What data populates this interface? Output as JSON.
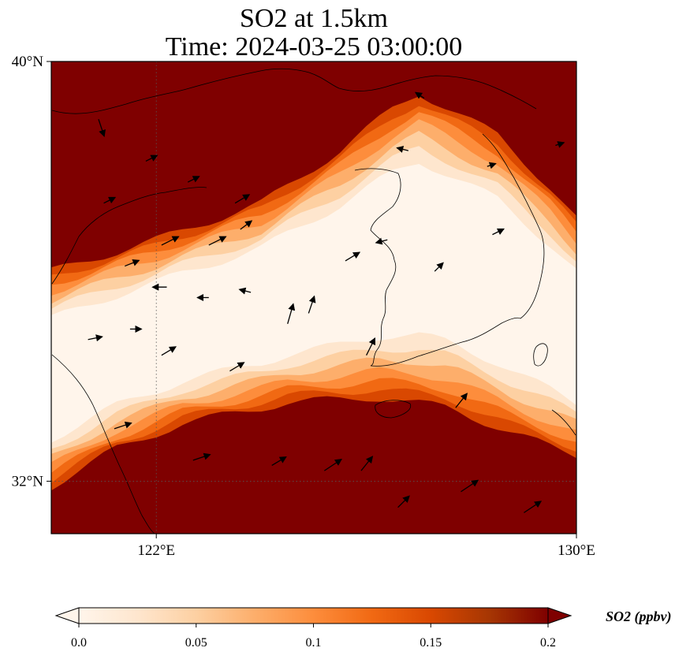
{
  "title": {
    "line1": "SO2 at 1.5km",
    "line2": "Time: 2024-03-25 03:00:00"
  },
  "colors": {
    "colormap": [
      "#fff5eb",
      "#fee6ce",
      "#fdd0a2",
      "#fdae6b",
      "#fd8d3c",
      "#f16913",
      "#d94801",
      "#a63603",
      "#7f0000"
    ],
    "high": "#7f0000",
    "coast": "#000000",
    "arrow": "#000000"
  },
  "chart_data": {
    "type": "heatmap",
    "variable": "SO2",
    "x_range": [
      120,
      130
    ],
    "y_range": [
      31,
      40
    ],
    "xticks": [
      {
        "value": 122,
        "label": "122°E"
      },
      {
        "value": 130,
        "label": "130°E"
      }
    ],
    "yticks": [
      {
        "value": 40,
        "label": "40°N"
      },
      {
        "value": 32,
        "label": "32°N"
      }
    ],
    "gridlines": "dotted",
    "wind_vectors": true,
    "coastlines": true,
    "colorbar": {
      "label": "SO2 (ppbv)",
      "min": 0.0,
      "max": 0.2,
      "ticks": [
        {
          "value": 0.0,
          "label": "0.0"
        },
        {
          "value": 0.05,
          "label": "0.05"
        },
        {
          "value": 0.1,
          "label": "0.1"
        },
        {
          "value": 0.15,
          "label": "0.15"
        },
        {
          "value": 0.2,
          "label": "0.2"
        }
      ],
      "extend": "both"
    },
    "low_band": {
      "note": "band of low SO2 values (data units: lon, lat)",
      "upper_edge": [
        [
          120.0,
          36.0
        ],
        [
          122.0,
          36.6
        ],
        [
          124.0,
          37.3
        ],
        [
          125.5,
          38.3
        ],
        [
          126.5,
          39.1
        ],
        [
          127.0,
          39.4
        ],
        [
          128.5,
          38.6
        ],
        [
          129.5,
          37.6
        ],
        [
          130.0,
          37.0
        ]
      ],
      "lower_edge": [
        [
          120.0,
          31.9
        ],
        [
          121.2,
          32.6
        ],
        [
          122.5,
          33.1
        ],
        [
          124.5,
          33.5
        ],
        [
          126.2,
          33.6
        ],
        [
          127.6,
          33.4
        ],
        [
          128.8,
          32.9
        ],
        [
          130.0,
          32.5
        ]
      ]
    },
    "wind": [
      [
        120.9,
        38.9,
        0.2,
        -0.6
      ],
      [
        121.8,
        38.1,
        0.4,
        0.2
      ],
      [
        122.6,
        37.7,
        0.4,
        0.2
      ],
      [
        123.5,
        37.3,
        0.5,
        0.3
      ],
      [
        121.0,
        37.3,
        0.4,
        0.2
      ],
      [
        122.1,
        36.5,
        0.6,
        0.3
      ],
      [
        123.0,
        36.5,
        0.6,
        0.3
      ],
      [
        123.6,
        36.8,
        0.4,
        0.3
      ],
      [
        121.4,
        36.1,
        0.5,
        0.2
      ],
      [
        122.2,
        35.7,
        -0.5,
        0.0
      ],
      [
        123.0,
        35.5,
        -0.4,
        0.0
      ],
      [
        123.8,
        35.6,
        -0.4,
        0.1
      ],
      [
        120.7,
        34.7,
        0.5,
        0.1
      ],
      [
        121.5,
        34.9,
        0.4,
        0.0
      ],
      [
        122.1,
        34.4,
        0.5,
        0.3
      ],
      [
        123.4,
        34.1,
        0.5,
        0.3
      ],
      [
        121.2,
        33.0,
        0.6,
        0.2
      ],
      [
        122.7,
        32.4,
        0.6,
        0.2
      ],
      [
        124.2,
        32.3,
        0.5,
        0.3
      ],
      [
        125.2,
        32.2,
        0.6,
        0.4
      ],
      [
        125.9,
        32.2,
        0.4,
        0.5
      ],
      [
        126.6,
        31.5,
        0.4,
        0.4
      ],
      [
        127.8,
        31.8,
        0.6,
        0.4
      ],
      [
        129.0,
        31.4,
        0.6,
        0.4
      ],
      [
        124.5,
        35.0,
        0.2,
        0.7
      ],
      [
        124.9,
        35.2,
        0.2,
        0.6
      ],
      [
        126.0,
        34.4,
        0.3,
        0.6
      ],
      [
        127.7,
        33.4,
        0.4,
        0.5
      ],
      [
        125.6,
        36.2,
        0.5,
        0.3
      ],
      [
        126.4,
        36.6,
        -0.4,
        -0.1
      ],
      [
        127.3,
        36.0,
        0.3,
        0.3
      ],
      [
        128.4,
        36.7,
        0.4,
        0.2
      ],
      [
        126.8,
        38.3,
        -0.4,
        0.1
      ],
      [
        127.1,
        39.3,
        -0.3,
        0.2
      ],
      [
        128.3,
        38.0,
        0.3,
        0.1
      ],
      [
        129.6,
        38.4,
        0.3,
        0.1
      ]
    ]
  }
}
